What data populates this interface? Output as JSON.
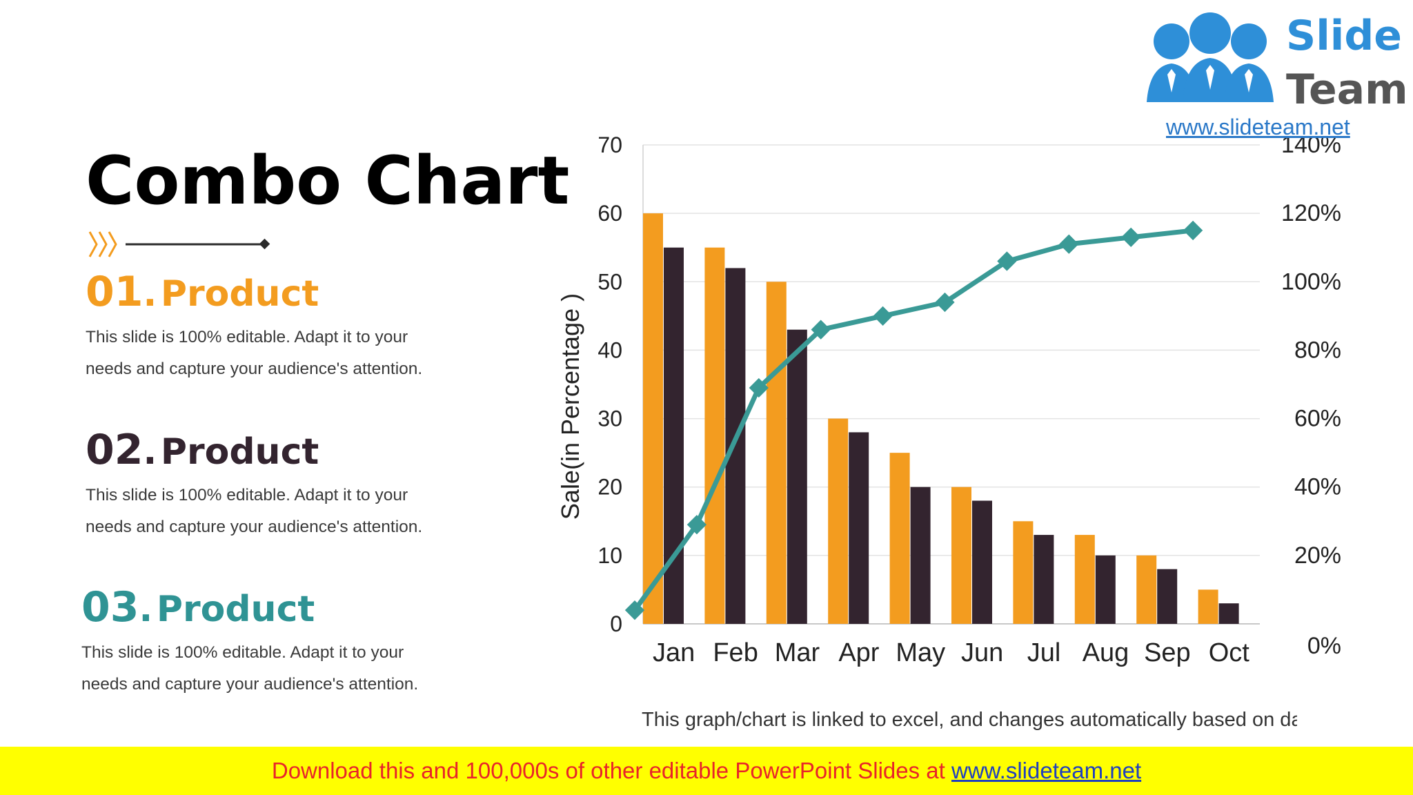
{
  "slide": {
    "title": "Combo Chart",
    "products": [
      {
        "num": "01",
        "sep": ".",
        "label": "Product",
        "color": "#f39c1f",
        "desc": "This slide is 100% editable. Adapt it to your needs and capture your audience's attention."
      },
      {
        "num": "02",
        "sep": ".",
        "label": "Product",
        "color": "#33242f",
        "desc": "This slide is 100% editable. Adapt it to your needs and capture your audience's attention."
      },
      {
        "num": "03",
        "sep": ".",
        "label": "Product",
        "color": "#2f9394",
        "desc": "This slide is 100% editable. Adapt it to your needs and capture your audience's attention."
      }
    ],
    "footnote": "This graph/chart is linked to excel, and changes automatically based on data. Just left click on it and select “Edit Data”.",
    "banner_text": "Download this and 100,000s of other editable PowerPoint Slides at ",
    "banner_link": "www.slideteam.net"
  },
  "logo": {
    "word1": "Slide",
    "word2": "Team",
    "url": "www.slideteam.net"
  },
  "chart_data": {
    "type": "bar",
    "categories": [
      "Jan",
      "Feb",
      "Mar",
      "Apr",
      "May",
      "Jun",
      "Jul",
      "Aug",
      "Sep",
      "Oct"
    ],
    "series": [
      {
        "values": [
          60,
          55,
          50,
          30,
          25,
          20,
          15,
          13,
          10,
          5
        ],
        "color": "#f39c1f",
        "type": "bar"
      },
      {
        "values": [
          55,
          52,
          43,
          28,
          20,
          18,
          13,
          10,
          8,
          3
        ],
        "color": "#33242f",
        "type": "bar"
      },
      {
        "values": [
          4,
          29,
          69,
          86,
          90,
          94,
          106,
          111,
          113,
          115
        ],
        "color": "#3a9a96",
        "type": "line",
        "axis": "right"
      }
    ],
    "ylabel": "Sale(in Percentage )",
    "ylim": [
      0,
      70
    ],
    "yticks": [
      0,
      10,
      20,
      30,
      40,
      50,
      60,
      70
    ],
    "y2lim": [
      0,
      140
    ],
    "y2ticks": [
      "0%",
      "20%",
      "40%",
      "60%",
      "80%",
      "100%",
      "120%",
      "140%"
    ],
    "grid": true,
    "legend": "none"
  }
}
